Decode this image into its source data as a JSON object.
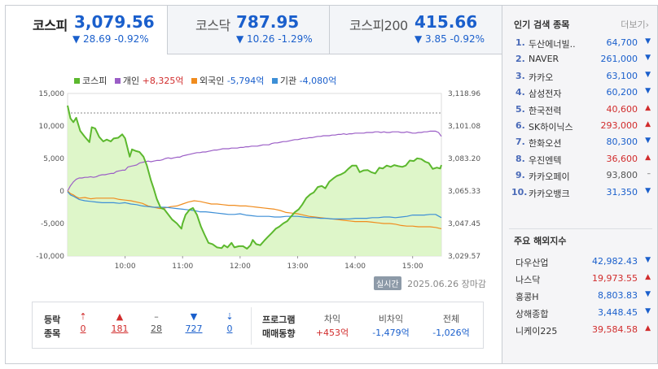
{
  "tabs": [
    {
      "name": "코스피",
      "value": "3,079.56",
      "change": "▼ 28.69 -0.92%"
    },
    {
      "name": "코스닥",
      "value": "787.95",
      "change": "▼ 10.26 -1.29%"
    },
    {
      "name": "코스피200",
      "value": "415.66",
      "change": "▼ 3.85 -0.92%"
    }
  ],
  "legend": [
    {
      "name": "코스피",
      "value": "",
      "color": "#5cb82e"
    },
    {
      "name": "개인",
      "value": "+8,325억",
      "color": "#9b5ec6"
    },
    {
      "name": "외국인",
      "value": "-5,794억",
      "color": "#f08c1e"
    },
    {
      "name": "기관",
      "value": "-4,080억",
      "color": "#3d8fd6"
    }
  ],
  "chart_data": {
    "type": "line",
    "x_ticks": [
      "10:00",
      "11:00",
      "12:00",
      "13:00",
      "14:00",
      "15:00"
    ],
    "left_axis": {
      "ticks": [
        "15,000",
        "10,000",
        "5,000",
        "0",
        "-5,000",
        "-10,000"
      ],
      "range": [
        -10000,
        15000
      ]
    },
    "right_axis": {
      "ticks": [
        "3,118.96",
        "3,101.08",
        "3,083.20",
        "3,065.33",
        "3,047.45",
        "3,029.57"
      ],
      "range": [
        3029.57,
        3118.96
      ]
    },
    "reference_line": 3108.25,
    "series": [
      {
        "name": "코스피",
        "axis": "right",
        "color": "#5cb82e",
        "x": [
          9.0,
          9.05,
          9.1,
          9.15,
          9.22,
          9.3,
          9.38,
          9.42,
          9.48,
          9.55,
          9.62,
          9.68,
          9.75,
          9.8,
          9.88,
          9.95,
          10.0,
          10.08,
          10.12,
          10.18,
          10.25,
          10.32,
          10.38,
          10.45,
          10.5,
          10.55,
          10.62,
          10.68,
          10.75,
          10.82,
          10.9,
          10.98,
          11.0,
          11.05,
          11.12,
          11.18,
          11.25,
          11.32,
          11.38,
          11.45,
          11.52,
          11.6,
          11.68,
          11.72,
          11.78,
          11.85,
          11.9,
          11.98,
          12.05,
          12.12,
          12.18,
          12.22,
          12.28,
          12.35,
          12.42,
          12.48,
          12.55,
          12.62,
          12.68,
          12.75,
          12.82,
          12.88,
          12.95,
          13.02,
          13.08,
          13.15,
          13.22,
          13.28,
          13.35,
          13.42,
          13.48,
          13.55,
          13.62,
          13.68,
          13.75,
          13.82,
          13.88,
          13.95,
          14.02,
          14.08,
          14.15,
          14.22,
          14.28,
          14.35,
          14.42,
          14.48,
          14.55,
          14.62,
          14.68,
          14.75,
          14.82,
          14.88,
          14.95,
          15.02,
          15.08,
          15.15,
          15.22,
          15.28,
          15.35,
          15.42,
          15.48,
          15.5
        ],
        "y": [
          3112.3,
          3105.3,
          3103.2,
          3105.6,
          3098.4,
          3095.1,
          3092.2,
          3100.4,
          3099.7,
          3095.1,
          3092.6,
          3093.6,
          3092.6,
          3094.2,
          3094.6,
          3096.5,
          3094.3,
          3084.2,
          3088.2,
          3087.4,
          3086.8,
          3084.2,
          3079.3,
          3071.1,
          3066.4,
          3061.0,
          3056.0,
          3055.3,
          3052.4,
          3049.6,
          3047.5,
          3044.6,
          3047.5,
          3052.2,
          3055.0,
          3056.0,
          3052.2,
          3045.7,
          3041.4,
          3036.8,
          3036.1,
          3034.3,
          3033.9,
          3035.5,
          3034.3,
          3036.8,
          3034.3,
          3035.0,
          3035.0,
          3033.6,
          3035.5,
          3038.4,
          3036.1,
          3035.5,
          3038.0,
          3040.0,
          3042.2,
          3044.6,
          3045.7,
          3047.5,
          3048.8,
          3051.1,
          3053.6,
          3055.3,
          3057.8,
          3061.5,
          3063.5,
          3064.5,
          3067.5,
          3068.1,
          3066.8,
          3070.4,
          3072.2,
          3073.6,
          3074.4,
          3075.6,
          3077.5,
          3079.3,
          3079.3,
          3075.7,
          3076.7,
          3076.8,
          3075.7,
          3075.0,
          3078.1,
          3077.7,
          3079.3,
          3078.6,
          3079.6,
          3079.0,
          3078.6,
          3079.3,
          3082.1,
          3081.8,
          3083.3,
          3082.9,
          3081.4,
          3080.7,
          3077.5,
          3078.2,
          3077.7,
          3079.6
        ]
      },
      {
        "name": "개인",
        "axis": "left",
        "color": "#9b5ec6",
        "x": [
          9.0,
          9.05,
          9.1,
          9.15,
          9.2,
          9.25,
          9.3,
          9.35,
          9.4,
          9.45,
          9.5,
          9.55,
          9.6,
          9.65,
          9.7,
          9.75,
          9.8,
          9.85,
          9.9,
          9.95,
          10.0,
          10.05,
          10.1,
          10.15,
          10.2,
          10.25,
          10.3,
          10.35,
          10.4,
          10.45,
          10.5,
          10.55,
          10.6,
          10.65,
          10.7,
          10.75,
          10.8,
          10.85,
          10.9,
          10.95,
          11.0,
          11.05,
          11.1,
          11.15,
          11.2,
          11.25,
          11.3,
          11.35,
          11.4,
          11.45,
          11.5,
          11.55,
          11.6,
          11.65,
          11.7,
          11.75,
          11.8,
          11.85,
          11.9,
          11.95,
          12.0,
          12.05,
          12.1,
          12.15,
          12.2,
          12.25,
          12.3,
          12.35,
          12.4,
          12.45,
          12.5,
          12.55,
          12.6,
          12.65,
          12.7,
          12.75,
          12.8,
          12.85,
          12.9,
          12.95,
          13.0,
          13.05,
          13.1,
          13.15,
          13.2,
          13.25,
          13.3,
          13.35,
          13.4,
          13.45,
          13.5,
          13.55,
          13.6,
          13.65,
          13.7,
          13.75,
          13.8,
          13.85,
          13.9,
          13.95,
          14.0,
          14.05,
          14.1,
          14.15,
          14.2,
          14.25,
          14.3,
          14.35,
          14.4,
          14.45,
          14.5,
          14.55,
          14.6,
          14.65,
          14.7,
          14.75,
          14.8,
          14.85,
          14.9,
          14.95,
          15.0,
          15.05,
          15.1,
          15.15,
          15.2,
          15.25,
          15.3,
          15.35,
          15.4,
          15.45,
          15.5
        ],
        "y": [
          0,
          800,
          1400,
          1800,
          2000,
          2000,
          2100,
          2100,
          2200,
          2100,
          2200,
          2400,
          2500,
          2500,
          2600,
          2700,
          2700,
          3000,
          3100,
          3200,
          3200,
          3700,
          3800,
          3900,
          4000,
          4300,
          4400,
          4500,
          4600,
          4500,
          4600,
          4700,
          4700,
          4800,
          5000,
          5100,
          5000,
          5100,
          5200,
          5200,
          5400,
          5500,
          5600,
          5700,
          5800,
          5900,
          5900,
          6000,
          6000,
          6100,
          6200,
          6300,
          6300,
          6400,
          6500,
          6500,
          6500,
          6600,
          6600,
          6600,
          6700,
          6700,
          6800,
          6800,
          6900,
          6900,
          6900,
          7000,
          7100,
          7100,
          7100,
          7300,
          7400,
          7400,
          7500,
          7600,
          7600,
          7700,
          7800,
          7900,
          7900,
          8000,
          8100,
          8100,
          8200,
          8200,
          8300,
          8400,
          8400,
          8500,
          8500,
          8500,
          8600,
          8600,
          8700,
          8700,
          8800,
          8700,
          8800,
          8800,
          8900,
          8900,
          8900,
          8900,
          9000,
          9000,
          9000,
          9100,
          9100,
          9000,
          9100,
          9000,
          9000,
          9100,
          9100,
          9100,
          9000,
          9000,
          9100,
          9000,
          8900,
          8900,
          9000,
          9000,
          9100,
          9100,
          9200,
          9200,
          9200,
          9000,
          8400
        ]
      },
      {
        "name": "외국인",
        "axis": "left",
        "color": "#f08c1e",
        "x": [
          9.0,
          9.05,
          9.1,
          9.15,
          9.2,
          9.3,
          9.4,
          9.5,
          9.6,
          9.7,
          9.8,
          9.9,
          10.0,
          10.1,
          10.2,
          10.3,
          10.4,
          10.5,
          10.6,
          10.7,
          10.8,
          10.9,
          11.0,
          11.1,
          11.2,
          11.3,
          11.4,
          11.5,
          11.6,
          11.7,
          11.8,
          11.9,
          12.0,
          12.1,
          12.2,
          12.3,
          12.4,
          12.5,
          12.6,
          12.7,
          12.8,
          12.9,
          13.0,
          13.1,
          13.2,
          13.3,
          13.4,
          13.5,
          13.6,
          13.7,
          13.8,
          13.9,
          14.0,
          14.1,
          14.2,
          14.3,
          14.4,
          14.5,
          14.6,
          14.7,
          14.8,
          14.9,
          15.0,
          15.1,
          15.2,
          15.3,
          15.4,
          15.5
        ],
        "y": [
          0,
          -400,
          -600,
          -900,
          -1100,
          -1000,
          -1200,
          -1100,
          -1100,
          -1100,
          -1100,
          -1300,
          -1400,
          -1500,
          -1700,
          -1900,
          -2300,
          -2500,
          -2700,
          -2600,
          -2400,
          -2300,
          -2000,
          -1700,
          -1500,
          -1600,
          -1800,
          -2000,
          -2000,
          -2100,
          -2200,
          -2200,
          -2300,
          -2300,
          -2400,
          -2500,
          -2600,
          -2700,
          -2800,
          -3000,
          -3300,
          -3400,
          -3500,
          -3700,
          -3900,
          -4000,
          -4100,
          -4200,
          -4300,
          -4400,
          -4500,
          -4600,
          -4700,
          -4700,
          -4700,
          -4800,
          -4900,
          -5000,
          -5000,
          -5100,
          -5300,
          -5400,
          -5400,
          -5500,
          -5500,
          -5500,
          -5600,
          -5800
        ]
      },
      {
        "name": "기관",
        "axis": "left",
        "color": "#3d8fd6",
        "x": [
          9.0,
          9.05,
          9.1,
          9.2,
          9.3,
          9.4,
          9.5,
          9.6,
          9.7,
          9.8,
          9.9,
          10.0,
          10.1,
          10.2,
          10.3,
          10.4,
          10.5,
          10.6,
          10.7,
          10.8,
          10.9,
          11.0,
          11.1,
          11.2,
          11.3,
          11.4,
          11.5,
          11.6,
          11.7,
          11.8,
          11.9,
          12.0,
          12.1,
          12.2,
          12.3,
          12.4,
          12.5,
          12.6,
          12.7,
          12.8,
          12.9,
          13.0,
          13.1,
          13.2,
          13.3,
          13.4,
          13.5,
          13.6,
          13.7,
          13.8,
          13.9,
          14.0,
          14.1,
          14.2,
          14.3,
          14.4,
          14.5,
          14.6,
          14.7,
          14.8,
          14.9,
          15.0,
          15.1,
          15.2,
          15.3,
          15.4,
          15.5
        ],
        "y": [
          -100,
          -600,
          -800,
          -1300,
          -1500,
          -1600,
          -1700,
          -1800,
          -1800,
          -1800,
          -1900,
          -1800,
          -2000,
          -2100,
          -2300,
          -2400,
          -2500,
          -2500,
          -2500,
          -2600,
          -2700,
          -2800,
          -2900,
          -3000,
          -3200,
          -3200,
          -3300,
          -3400,
          -3500,
          -3600,
          -3600,
          -3500,
          -3700,
          -3800,
          -3900,
          -3900,
          -3900,
          -4000,
          -4000,
          -3900,
          -3900,
          -3900,
          -4000,
          -4100,
          -4100,
          -4200,
          -4200,
          -4300,
          -4300,
          -4300,
          -4300,
          -4200,
          -4200,
          -4200,
          -4100,
          -4100,
          -4000,
          -4000,
          -4100,
          -4000,
          -3900,
          -3700,
          -3700,
          -3700,
          -3600,
          -3600,
          -4100
        ]
      }
    ]
  },
  "status": {
    "live_label": "실시간",
    "date": "2025.06.26",
    "state": "장마감"
  },
  "stats": {
    "label_line1": "등락",
    "label_line2": "종목",
    "items": [
      {
        "icon": "⇡",
        "value": "0",
        "color": "#d12c2c"
      },
      {
        "icon": "▲",
        "value": "181",
        "color": "#d12c2c"
      },
      {
        "icon": "–",
        "value": "28",
        "color": "#555555"
      },
      {
        "icon": "▼",
        "value": "727",
        "color": "#1a5fcc"
      },
      {
        "icon": "⇣",
        "value": "0",
        "color": "#1a5fcc"
      }
    ],
    "program_label_line1": "프로그램",
    "program_label_line2": "매매동향",
    "program": [
      {
        "label": "차익",
        "value": "+453억",
        "color": "#d12c2c"
      },
      {
        "label": "비차익",
        "value": "-1,479억",
        "color": "#1a5fcc"
      },
      {
        "label": "전체",
        "value": "-1,026억",
        "color": "#1a5fcc"
      }
    ]
  },
  "popular": {
    "title": "인기 검색 종목",
    "more": "더보기",
    "items": [
      {
        "rank": "1.",
        "name": "두산에너빌..",
        "price": "64,700",
        "dir": "down"
      },
      {
        "rank": "2.",
        "name": "NAVER",
        "price": "261,000",
        "dir": "down"
      },
      {
        "rank": "3.",
        "name": "카카오",
        "price": "63,100",
        "dir": "down"
      },
      {
        "rank": "4.",
        "name": "삼성전자",
        "price": "60,200",
        "dir": "down"
      },
      {
        "rank": "5.",
        "name": "한국전력",
        "price": "40,600",
        "dir": "up"
      },
      {
        "rank": "6.",
        "name": "SK하이닉스",
        "price": "293,000",
        "dir": "up"
      },
      {
        "rank": "7.",
        "name": "한화오션",
        "price": "80,300",
        "dir": "down"
      },
      {
        "rank": "8.",
        "name": "우진엔텍",
        "price": "36,600",
        "dir": "up"
      },
      {
        "rank": "9.",
        "name": "카카오페이",
        "price": "93,800",
        "dir": "flat"
      },
      {
        "rank": "10.",
        "name": "카카오뱅크",
        "price": "31,350",
        "dir": "down"
      }
    ]
  },
  "world": {
    "title": "주요 해외지수",
    "items": [
      {
        "name": "다우산업",
        "value": "42,982.43",
        "dir": "down"
      },
      {
        "name": "나스닥",
        "value": "19,973.55",
        "dir": "up"
      },
      {
        "name": "홍콩H",
        "value": "8,803.83",
        "dir": "down"
      },
      {
        "name": "상해종합",
        "value": "3,448.45",
        "dir": "down"
      },
      {
        "name": "니케이225",
        "value": "39,584.58",
        "dir": "up"
      }
    ]
  },
  "colors": {
    "up": "#d12c2c",
    "down": "#1a5fcc",
    "flat": "#555555",
    "area_fill": "#d8f5c0"
  }
}
